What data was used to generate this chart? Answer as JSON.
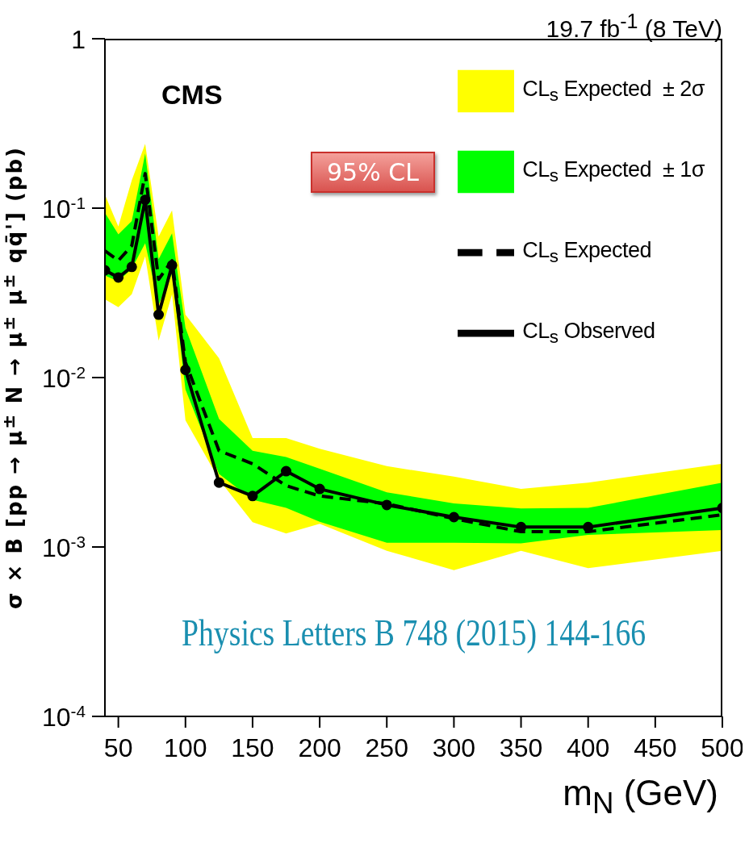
{
  "chart_data": {
    "type": "line",
    "subtitle": "19.7 fb$^{-1}$ (8 TeV)",
    "xlabel": "m$_{N}$ (GeV)",
    "ylabel": "σ × B [pp → μ$^{±}$ N → μ$^{±}$ μ$^{±}$ qq̄'] (pb)",
    "x": [
      40,
      50,
      60,
      70,
      80,
      90,
      100,
      125,
      150,
      175,
      200,
      250,
      300,
      350,
      400,
      500
    ],
    "series": [
      {
        "name": "CL$_{s}$ Expected  ± 2σ",
        "type": "area",
        "color": "#ffff00",
        "values": [
          null,
          null,
          null,
          null,
          null,
          null,
          null,
          null,
          null,
          null,
          null,
          null,
          null,
          null,
          null,
          null
        ],
        "lower": [
          0.029,
          0.026,
          0.031,
          0.052,
          0.0165,
          0.031,
          0.0056,
          0.0025,
          0.0014,
          0.0012,
          0.00137,
          0.00095,
          0.00073,
          0.00095,
          0.00075,
          0.00095
        ],
        "upper": [
          0.12,
          0.078,
          0.146,
          0.24,
          0.068,
          0.097,
          0.0235,
          0.013,
          0.0044,
          0.0044,
          0.0038,
          0.003,
          0.0026,
          0.0022,
          0.0024,
          0.0031
        ]
      },
      {
        "name": "CL$_{s}$ Expected  ± 1σ",
        "type": "area",
        "color": "#00ff00",
        "values": [
          null,
          null,
          null,
          null,
          null,
          null,
          null,
          null,
          null,
          null,
          null,
          null,
          null,
          null,
          null,
          null
        ],
        "lower": [
          0.04,
          0.037,
          0.044,
          0.062,
          0.027,
          0.041,
          0.0085,
          0.0027,
          0.0019,
          0.0017,
          0.00141,
          0.00106,
          0.00106,
          0.00105,
          0.00118,
          0.00126
        ],
        "upper": [
          0.094,
          0.07,
          0.084,
          0.21,
          0.05,
          0.071,
          0.0197,
          0.0057,
          0.0037,
          0.0034,
          0.0029,
          0.0021,
          0.00181,
          0.00169,
          0.0017,
          0.0024
        ]
      },
      {
        "name": "CL$_{s}$ Expected",
        "type": "line",
        "color": "#000000",
        "line_style": "dashed",
        "marker": "none",
        "values": [
          0.056,
          0.049,
          0.06,
          0.16,
          0.038,
          0.049,
          0.0123,
          0.0037,
          0.0031,
          0.0023,
          0.002,
          0.0018,
          0.00147,
          0.00123,
          0.00123,
          0.00155
        ]
      },
      {
        "name": "CL$_{s}$ Observed",
        "type": "line",
        "color": "#000000",
        "line_style": "solid",
        "marker": "circle",
        "values": [
          0.043,
          0.039,
          0.045,
          0.112,
          0.0235,
          0.046,
          0.0111,
          0.0024,
          0.002,
          0.0028,
          0.0022,
          0.00177,
          0.0015,
          0.00131,
          0.00131,
          0.0017
        ]
      }
    ],
    "xlim": [
      40,
      500
    ],
    "xticks": [
      50,
      100,
      150,
      200,
      250,
      300,
      350,
      400,
      450,
      500
    ],
    "ylim": [
      0.0001,
      1
    ],
    "yticks": [
      {
        "value": 0.0001,
        "label": "10$^{-4}$"
      },
      {
        "value": 0.001,
        "label": "10$^{-3}$"
      },
      {
        "value": 0.01,
        "label": "10$^{-2}$"
      },
      {
        "value": 0.1,
        "label": "10$^{-1}$"
      },
      1
    ],
    "log": "y",
    "grid": false,
    "legend": "top right",
    "annotations": [
      "CMS",
      "95% CL",
      "Physics Letters B 748 (2015) 144-166"
    ]
  }
}
